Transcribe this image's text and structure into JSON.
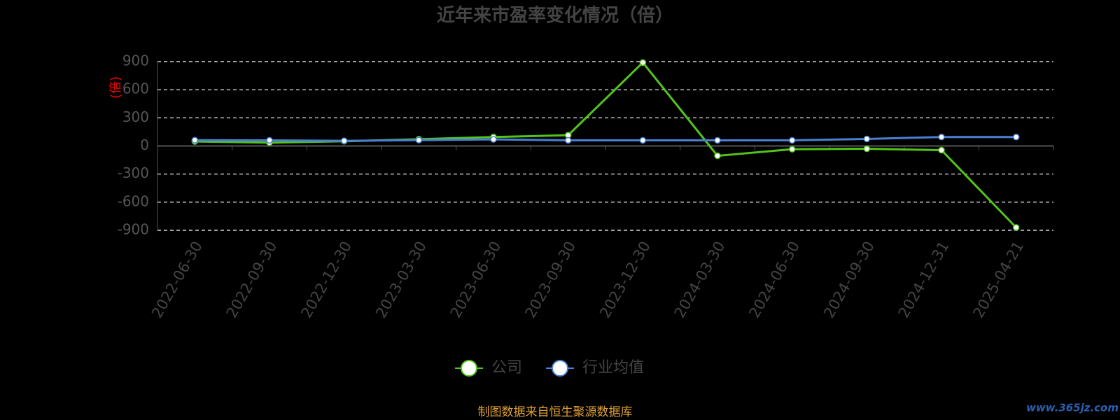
{
  "chart_data": {
    "type": "line",
    "title": "近年来市盈率变化情况（倍）",
    "y_label": "(倍)",
    "categories": [
      "2022-06-30",
      "2022-09-30",
      "2022-12-30",
      "2023-03-30",
      "2023-06-30",
      "2023-09-30",
      "2023-12-30",
      "2024-03-30",
      "2024-06-30",
      "2024-09-30",
      "2024-12-31",
      "2025-04-21"
    ],
    "series": [
      {
        "name": "公司",
        "color": "#52c41a",
        "values": [
          48,
          35,
          50,
          72,
          95,
          115,
          890,
          -105,
          -35,
          -30,
          -45,
          -870
        ]
      },
      {
        "name": "行业均值",
        "color": "#4a7fd4",
        "values": [
          62,
          60,
          55,
          62,
          70,
          60,
          60,
          60,
          60,
          75,
          95,
          95
        ]
      }
    ],
    "ylim": [
      -900,
      900
    ],
    "yticks": [
      -900,
      -600,
      -300,
      0,
      300,
      600,
      900
    ],
    "grid": true,
    "source": "制图数据来自恒生聚源数据库",
    "watermark": "www.365jz.com"
  }
}
